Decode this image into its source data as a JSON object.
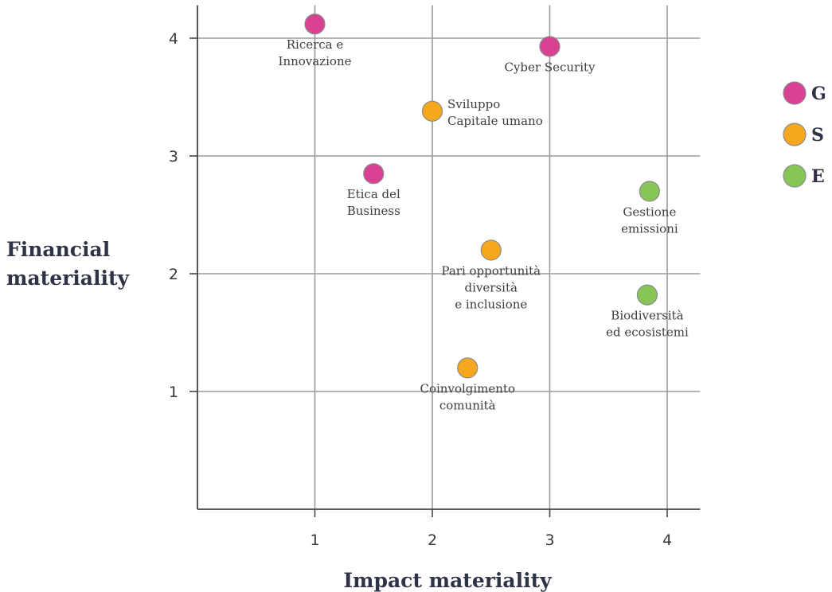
{
  "chart_data": {
    "type": "scatter",
    "xlabel": "Impact materiality",
    "ylabel_lines": [
      "Financial",
      "materiality"
    ],
    "xlim": [
      0,
      4.3
    ],
    "ylim": [
      0,
      4.3
    ],
    "x_ticks": [
      1,
      2,
      3,
      4
    ],
    "y_ticks": [
      1,
      2,
      3,
      4
    ],
    "grid": true,
    "legend_placement": "right",
    "categories": [
      {
        "key": "G",
        "label": "G",
        "color": "#d94293"
      },
      {
        "key": "S",
        "label": "S",
        "color": "#f5a81d"
      },
      {
        "key": "E",
        "label": "E",
        "color": "#86c657"
      }
    ],
    "points": [
      {
        "x": 1.0,
        "y": 4.12,
        "category": "G",
        "label_lines": [
          "Ricerca e",
          "Innovazione"
        ]
      },
      {
        "x": 3.0,
        "y": 3.93,
        "category": "G",
        "label_lines": [
          "Cyber Security"
        ]
      },
      {
        "x": 2.0,
        "y": 3.38,
        "category": "S",
        "label_lines": [
          "Sviluppo",
          "Capitale umano"
        ]
      },
      {
        "x": 1.5,
        "y": 2.85,
        "category": "G",
        "label_lines": [
          "Etica del",
          "Business"
        ]
      },
      {
        "x": 3.85,
        "y": 2.7,
        "category": "E",
        "label_lines": [
          "Gestione",
          "emissioni"
        ]
      },
      {
        "x": 2.5,
        "y": 2.2,
        "category": "S",
        "label_lines": [
          "Pari opportunità",
          "diversità",
          "e inclusione"
        ]
      },
      {
        "x": 3.83,
        "y": 1.82,
        "category": "E",
        "label_lines": [
          "Biodiversità",
          "ed ecosistemi"
        ]
      },
      {
        "x": 2.3,
        "y": 1.2,
        "category": "S",
        "label_lines": [
          "Coinvolgimento",
          "comunità"
        ]
      }
    ]
  }
}
